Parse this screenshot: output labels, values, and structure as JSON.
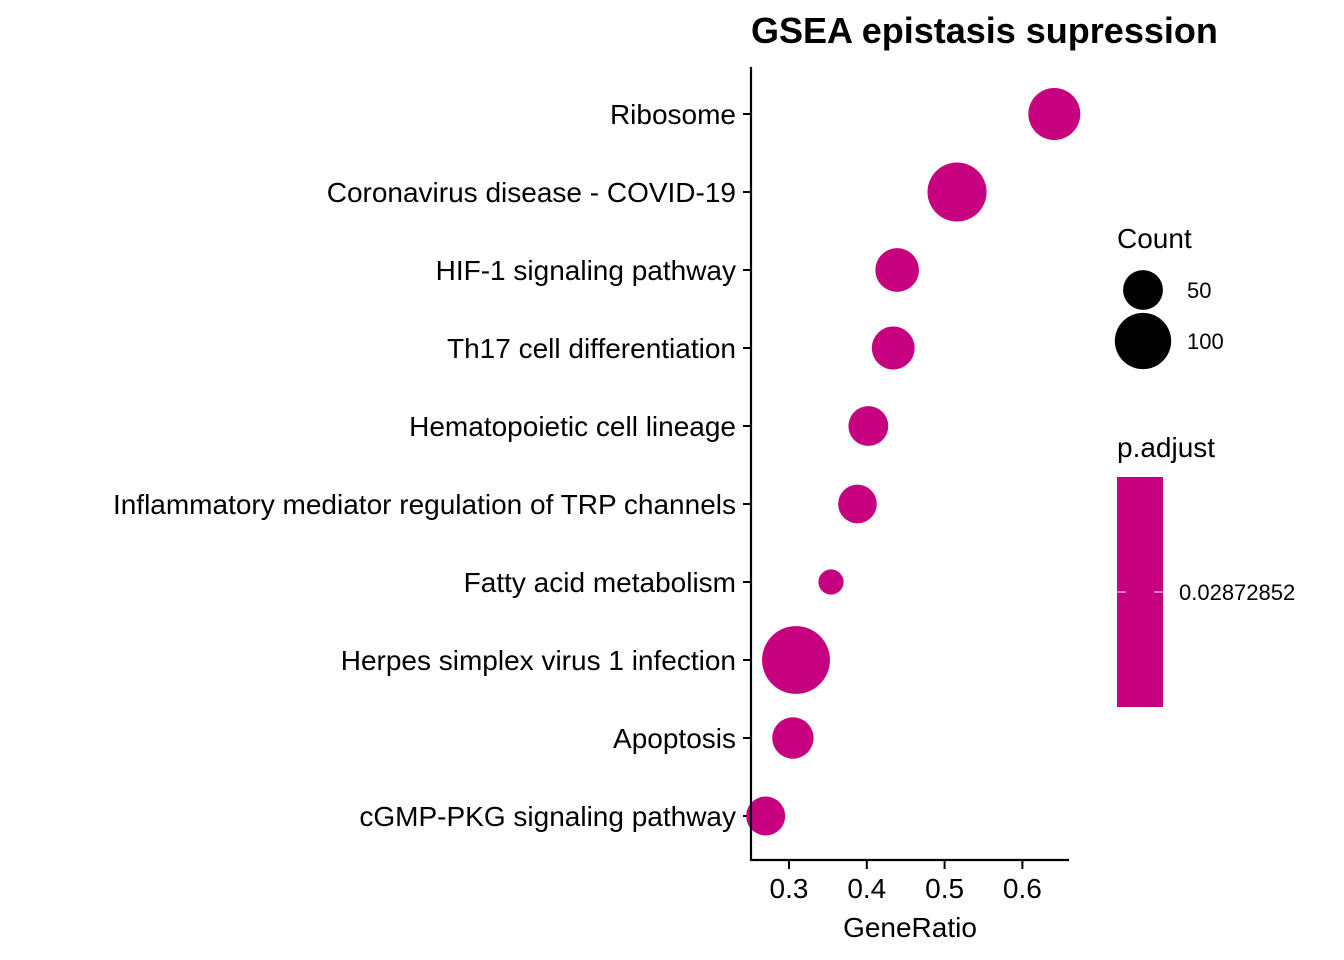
{
  "chart_data": {
    "type": "scatter",
    "title": "GSEA epistasis supression",
    "xlabel": "GeneRatio",
    "ylabel": "",
    "xlim": [
      0.25,
      0.66
    ],
    "x_ticks": [
      0.3,
      0.4,
      0.5,
      0.6
    ],
    "x_tick_labels": [
      "0.3",
      "0.4",
      "0.5",
      "0.6"
    ],
    "grid": false,
    "point_color": "#C6007E",
    "categories": [
      "Ribosome",
      "Coronavirus disease - COVID-19",
      "HIF-1 signaling pathway",
      "Th17 cell differentiation",
      "Hematopoietic cell lineage",
      "Inflammatory mediator regulation of TRP channels",
      "Fatty acid metabolism",
      "Herpes simplex virus 1 infection",
      "Apoptosis",
      "cGMP-PKG signaling pathway"
    ],
    "series": [
      {
        "x": [
          0.641,
          0.516,
          0.439,
          0.434,
          0.402,
          0.388,
          0.354,
          0.309,
          0.305,
          0.27
        ],
        "count": [
          85,
          110,
          60,
          58,
          50,
          47,
          20,
          145,
          54,
          48
        ],
        "p_adjust": [
          0.02872852,
          0.02872852,
          0.02872852,
          0.02872852,
          0.02872852,
          0.02872852,
          0.02872852,
          0.02872852,
          0.02872852,
          0.02872852
        ]
      }
    ],
    "legend": {
      "position": "right",
      "size_title": "Count",
      "size_entries": [
        {
          "label": "50",
          "value": 50
        },
        {
          "label": "100",
          "value": 100
        }
      ],
      "color_title": "p.adjust",
      "color_entries": [
        {
          "label": "0.02872852",
          "color": "#C6007E"
        }
      ]
    }
  }
}
